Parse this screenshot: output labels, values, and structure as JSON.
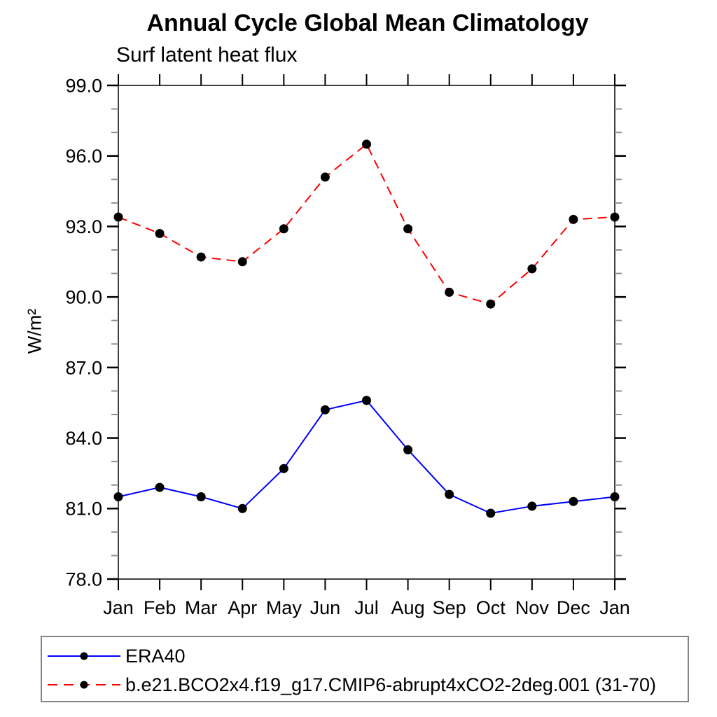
{
  "chart_data": {
    "type": "line",
    "title": "Annual Cycle Global Mean Climatology",
    "subtitle": "Surf latent heat flux",
    "ylabel": "W/m²",
    "xlabel": "",
    "categories": [
      "Jan",
      "Feb",
      "Mar",
      "Apr",
      "May",
      "Jun",
      "Jul",
      "Aug",
      "Sep",
      "Oct",
      "Nov",
      "Dec",
      "Jan"
    ],
    "ylim": [
      78.0,
      99.0
    ],
    "ytick_major_interval": 3.0,
    "ytick_minor_interval": 1.0,
    "ytick_labels": [
      "78.0",
      "81.0",
      "84.0",
      "87.0",
      "90.0",
      "93.0",
      "96.0",
      "99.0"
    ],
    "grid": false,
    "legend_position": "bottom-left-box",
    "series": [
      {
        "name": "ERA40",
        "color": "#0000ff",
        "line_style": "solid",
        "marker": "circle",
        "marker_color": "#000000",
        "values": [
          81.5,
          81.9,
          81.5,
          81.0,
          82.7,
          85.2,
          85.6,
          83.5,
          81.6,
          80.8,
          81.1,
          81.3,
          81.5
        ]
      },
      {
        "name": "b.e21.BCO2x4.f19_g17.CMIP6-abrupt4xCO2-2deg.001 (31-70)",
        "color": "#ff0000",
        "line_style": "dashed",
        "marker": "circle",
        "marker_color": "#000000",
        "values": [
          93.4,
          92.7,
          91.7,
          91.5,
          92.9,
          95.1,
          96.5,
          92.9,
          90.2,
          89.7,
          91.2,
          93.3,
          93.4
        ]
      }
    ]
  },
  "colors": {
    "axis_frame": "#404040",
    "major_tick": "#000000",
    "minor_tick": "#909090",
    "tick_label": "#000000",
    "legend_border": "#848484"
  }
}
